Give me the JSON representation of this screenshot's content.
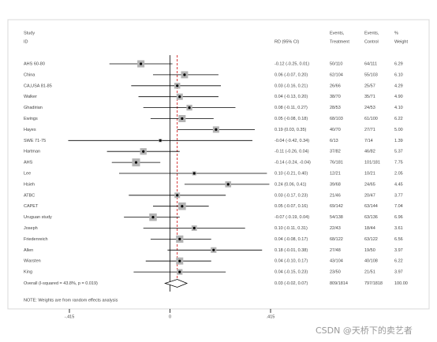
{
  "chart_data": {
    "type": "forest",
    "headers": {
      "study": "Study",
      "id": "ID",
      "rd": "RD (95% CI)",
      "events1": "Events,",
      "treatment": "Treatment",
      "events2": "Events,",
      "control": "Control",
      "pct": "%",
      "weight": "Weight"
    },
    "studies": [
      "AHS 60-80",
      "China",
      "CA,USA 81-85",
      "Walker",
      "Ghadirian",
      "Ewings",
      "Hayes",
      "SWE 71-75",
      "Hartman",
      "AHS",
      "Lee",
      "Hsieh",
      "ATBC",
      "CAPET",
      "Uruguan study",
      "Joseph",
      "Friedenreich",
      "Allen",
      "Wiarsten",
      "King"
    ],
    "estimates": [
      -0.12,
      0.06,
      0.03,
      0.04,
      0.08,
      0.05,
      0.19,
      -0.04,
      -0.11,
      -0.14,
      0.1,
      0.24,
      0.03,
      0.05,
      -0.07,
      0.1,
      0.04,
      0.18,
      0.04,
      0.04
    ],
    "lower": [
      -0.25,
      -0.07,
      -0.16,
      -0.13,
      -0.11,
      -0.08,
      0.03,
      -0.42,
      -0.26,
      -0.24,
      -0.21,
      0.06,
      -0.17,
      -0.07,
      -0.19,
      -0.11,
      -0.08,
      -0.01,
      -0.1,
      -0.15
    ],
    "upper": [
      0.01,
      0.2,
      0.21,
      0.2,
      0.27,
      0.18,
      0.35,
      0.34,
      0.04,
      -0.04,
      0.4,
      0.41,
      0.23,
      0.16,
      0.04,
      0.31,
      0.17,
      0.38,
      0.17,
      0.23
    ],
    "rd_labels": [
      "-0.12 (-0.25, 0.01)",
      "0.06 (-0.07, 0.20)",
      "0.03 (-0.16, 0.21)",
      "0.04 (-0.13, 0.20)",
      "0.08 (-0.11, 0.27)",
      "0.05 (-0.08, 0.18)",
      "0.19 (0.03, 0.35)",
      "-0.04 (-0.42, 0.34)",
      "-0.11 (-0.26, 0.04)",
      "-0.14 (-0.24, -0.04)",
      "0.10 (-0.21, 0.40)",
      "0.24 (0.06, 0.41)",
      "0.03 (-0.17, 0.23)",
      "0.05 (-0.07, 0.16)",
      "-0.07 (-0.19, 0.04)",
      "0.10 (-0.11, 0.31)",
      "0.04 (-0.08, 0.17)",
      "0.18 (-0.01, 0.38)",
      "0.04 (-0.10, 0.17)",
      "0.04 (-0.15, 0.23)"
    ],
    "events_treatment": [
      "50/110",
      "62/104",
      "26/66",
      "38/70",
      "28/53",
      "68/103",
      "40/70",
      "6/13",
      "37/82",
      "76/181",
      "12/21",
      "39/68",
      "21/46",
      "69/142",
      "54/138",
      "22/43",
      "68/122",
      "27/48",
      "43/104",
      "23/50"
    ],
    "events_control": [
      "64/111",
      "55/103",
      "25/57",
      "35/71",
      "24/53",
      "61/100",
      "27/71",
      "7/14",
      "46/82",
      "101/181",
      "10/21",
      "24/65",
      "20/47",
      "63/144",
      "63/136",
      "18/44",
      "63/122",
      "19/50",
      "40/108",
      "21/51"
    ],
    "weights": [
      6.29,
      6.1,
      4.29,
      4.9,
      4.1,
      6.22,
      5.0,
      1.39,
      5.37,
      7.75,
      2.05,
      4.45,
      3.77,
      7.04,
      6.96,
      3.61,
      6.56,
      3.97,
      6.22,
      3.97
    ],
    "weight_labels": [
      "6.29",
      "6.10",
      "4.29",
      "4.90",
      "4.10",
      "6.22",
      "5.00",
      "1.39",
      "5.37",
      "7.75",
      "2.05",
      "4.45",
      "3.77",
      "7.04",
      "6.96",
      "3.61",
      "6.56",
      "3.97",
      "6.22",
      "3.97"
    ],
    "overall": {
      "label": "Overall (I-squared = 43.8%, p = 0.019)",
      "estimate": 0.03,
      "lower": -0.02,
      "upper": 0.07,
      "rd_label": "0.03 (-0.02, 0.07)",
      "events_treatment": "809/1814",
      "events_control": "797/1818",
      "weight": 100.0,
      "weight_label": "100.00"
    },
    "note": "NOTE: Weights are from random effects analysis",
    "xlim": [
      -0.415,
      0.415
    ],
    "xticks": [
      {
        "value": -0.415,
        "label": "-.415"
      },
      0,
      {
        "value": 0.415,
        "label": ".415"
      }
    ],
    "watermark": "CSDN @天桥下的卖艺者"
  }
}
